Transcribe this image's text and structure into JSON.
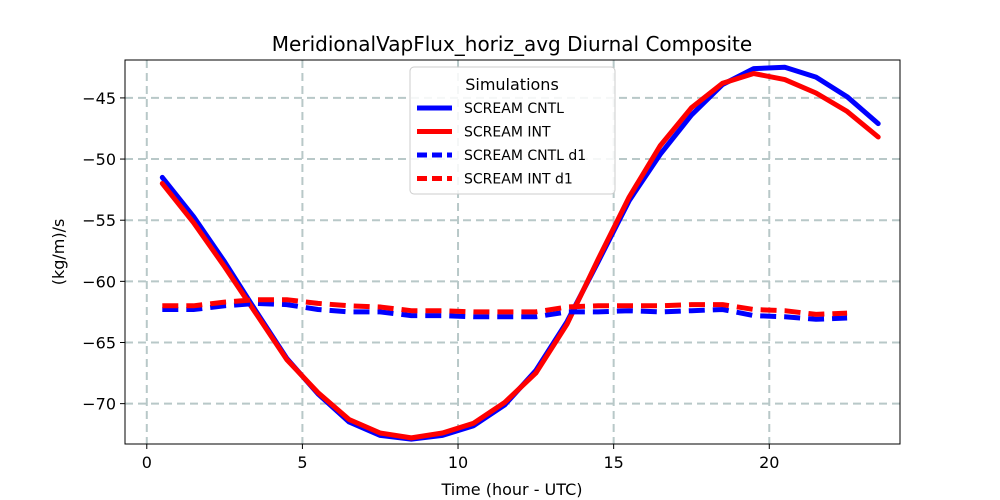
{
  "chart_data": {
    "type": "line",
    "title": "MeridionalVapFlux_horiz_avg Diurnal Composite",
    "xlabel": "Time (hour - UTC)",
    "ylabel": "(kg/m)/s",
    "xlim": [
      -0.7,
      24.2
    ],
    "ylim": [
      -73.3,
      -41.9
    ],
    "xticks": [
      0,
      5,
      10,
      15,
      20
    ],
    "yticks": [
      -70,
      -65,
      -60,
      -55,
      -50,
      -45
    ],
    "xtick_labels": [
      "0",
      "5",
      "10",
      "15",
      "20"
    ],
    "ytick_labels": [
      "−70",
      "−65",
      "−60",
      "−55",
      "−50",
      "−45"
    ],
    "grid": true,
    "legend": {
      "title": "Simulations",
      "position": "top-center"
    },
    "series": [
      {
        "name": "SCREAM CNTL",
        "color": "#0000ff",
        "style": "solid",
        "x": [
          0.5,
          1.5,
          2.5,
          3.5,
          4.5,
          5.5,
          6.5,
          7.5,
          8.5,
          9.5,
          10.5,
          11.5,
          12.5,
          13.5,
          14.5,
          15.5,
          16.5,
          17.5,
          18.5,
          19.5,
          20.5,
          21.5,
          22.5,
          23.5
        ],
        "y": [
          -51.5,
          -54.7,
          -58.4,
          -62.4,
          -66.3,
          -69.2,
          -71.5,
          -72.6,
          -72.9,
          -72.6,
          -71.8,
          -70.1,
          -67.3,
          -63.3,
          -58.4,
          -53.4,
          -49.6,
          -46.4,
          -43.9,
          -42.6,
          -42.5,
          -43.3,
          -44.9,
          -47.1
        ]
      },
      {
        "name": "SCREAM INT",
        "color": "#ff0000",
        "style": "solid",
        "x": [
          0.5,
          1.5,
          2.5,
          3.5,
          4.5,
          5.5,
          6.5,
          7.5,
          8.5,
          9.5,
          10.5,
          11.5,
          12.5,
          13.5,
          14.5,
          15.5,
          16.5,
          17.5,
          18.5,
          19.5,
          20.5,
          21.5,
          22.5,
          23.5
        ],
        "y": [
          -52.0,
          -55.2,
          -58.8,
          -62.6,
          -66.4,
          -69.1,
          -71.3,
          -72.4,
          -72.8,
          -72.4,
          -71.6,
          -69.9,
          -67.5,
          -63.5,
          -58.2,
          -53.1,
          -48.9,
          -45.8,
          -43.8,
          -43.0,
          -43.5,
          -44.6,
          -46.1,
          -48.2
        ]
      },
      {
        "name": "SCREAM CNTL d1",
        "color": "#0000ff",
        "style": "dashed",
        "x": [
          0.5,
          1.5,
          2.5,
          3.5,
          4.5,
          5.5,
          6.5,
          7.5,
          8.5,
          9.5,
          10.5,
          11.5,
          12.5,
          13.5,
          14.5,
          15.5,
          16.5,
          17.5,
          18.5,
          19.5,
          20.5,
          21.5,
          22.5
        ],
        "y": [
          -62.3,
          -62.3,
          -62.0,
          -61.8,
          -61.9,
          -62.3,
          -62.5,
          -62.5,
          -62.8,
          -62.8,
          -62.9,
          -62.9,
          -62.9,
          -62.5,
          -62.5,
          -62.4,
          -62.5,
          -62.4,
          -62.3,
          -62.8,
          -62.9,
          -63.1,
          -63.0
        ]
      },
      {
        "name": "SCREAM INT d1",
        "color": "#ff0000",
        "style": "dashed",
        "x": [
          0.5,
          1.5,
          2.5,
          3.5,
          4.5,
          5.5,
          6.5,
          7.5,
          8.5,
          9.5,
          10.5,
          11.5,
          12.5,
          13.5,
          14.5,
          15.5,
          16.5,
          17.5,
          18.5,
          19.5,
          20.5,
          21.5,
          22.5
        ],
        "y": [
          -62.0,
          -62.0,
          -61.7,
          -61.5,
          -61.5,
          -61.8,
          -62.0,
          -62.1,
          -62.4,
          -62.4,
          -62.5,
          -62.5,
          -62.5,
          -62.1,
          -62.0,
          -62.0,
          -62.0,
          -61.9,
          -61.9,
          -62.3,
          -62.4,
          -62.7,
          -62.6
        ]
      }
    ]
  }
}
